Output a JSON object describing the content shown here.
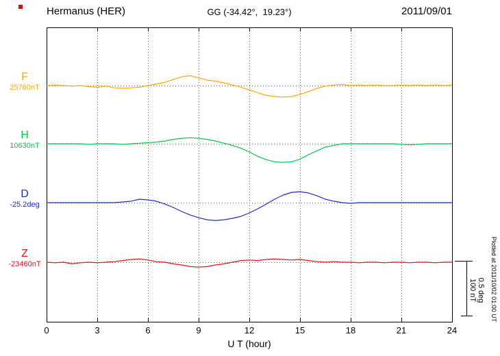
{
  "header": {
    "station": "Hermanus (HER)",
    "coordinates": "GG (-34.42°,  19.23°)",
    "date": "2011/09/01"
  },
  "x_axis": {
    "label": "U T (hour)",
    "tick_labels": [
      "0",
      "3",
      "6",
      "9",
      "12",
      "15",
      "18",
      "21",
      "24"
    ]
  },
  "scale_bar": {
    "nt": "100 nT",
    "deg": "0.5 deg"
  },
  "footer_note": "Plotted at 2011/10/02 01:00 UT",
  "chart_data": {
    "type": "line",
    "title": "Hermanus (HER) magnetogram 2011/09/01",
    "xlabel": "U T (hour)",
    "x_range_hours": [
      0,
      24
    ],
    "x_ticks": [
      0,
      3,
      6,
      9,
      12,
      15,
      18,
      21,
      24
    ],
    "sample_step_hours": 0.5,
    "grid": "dotted vertical at 3h intervals, dotted horizontal at each trace baseline",
    "scale": {
      "per_division_nT": 100,
      "per_division_deg": 0.5
    },
    "series": [
      {
        "name": "F",
        "baseline_label": "25760nT",
        "baseline_value": 25760,
        "unit": "nT",
        "color": "#FFA500",
        "delta": [
          0,
          1,
          0,
          -1,
          0,
          -2,
          -3,
          -1,
          -4,
          -5,
          -4,
          -3,
          0,
          3,
          6,
          11,
          16,
          18,
          14,
          10,
          8,
          5,
          1,
          -3,
          -8,
          -13,
          -18,
          -20,
          -21,
          -20,
          -16,
          -11,
          -5,
          -1,
          1,
          2,
          0,
          1,
          0,
          1,
          0,
          0,
          1,
          0,
          1,
          0,
          1,
          0,
          1
        ]
      },
      {
        "name": "H",
        "baseline_label": "10630nT",
        "baseline_value": 10630,
        "unit": "nT",
        "color": "#00C840",
        "delta": [
          0,
          0,
          0,
          0,
          0,
          -1,
          0,
          0,
          0,
          -1,
          0,
          1,
          2,
          3,
          5,
          8,
          10,
          11,
          10,
          8,
          5,
          1,
          -3,
          -8,
          -15,
          -23,
          -29,
          -33,
          -34,
          -33,
          -28,
          -20,
          -13,
          -6,
          -3,
          0,
          0,
          0,
          0,
          0,
          0,
          0,
          -1,
          -2,
          -1,
          0,
          0,
          0,
          0
        ]
      },
      {
        "name": "D",
        "baseline_label": "-25.2deg",
        "baseline_value": -25.2,
        "unit": "deg",
        "color": "#2228C8",
        "delta": [
          0,
          0,
          0,
          0,
          0,
          0,
          0,
          0,
          0,
          0.006,
          0.013,
          0.031,
          0.025,
          0.013,
          -0.013,
          -0.044,
          -0.081,
          -0.113,
          -0.138,
          -0.156,
          -0.163,
          -0.156,
          -0.144,
          -0.125,
          -0.094,
          -0.056,
          -0.013,
          0.031,
          0.069,
          0.094,
          0.1,
          0.088,
          0.063,
          0.031,
          0.013,
          0,
          -0.006,
          0,
          0,
          0,
          0,
          0,
          0,
          0,
          0,
          0,
          0,
          0,
          0
        ]
      },
      {
        "name": "Z",
        "baseline_label": "-23460nT",
        "baseline_value": -23460,
        "unit": "nT",
        "color": "#E01010",
        "delta": [
          0,
          -1,
          0,
          -3,
          -1,
          0,
          -1,
          0,
          1,
          3,
          5,
          6,
          4,
          1,
          0,
          -3,
          -5,
          -8,
          -9,
          -8,
          -5,
          -3,
          0,
          3,
          4,
          3,
          5,
          6,
          5,
          4,
          5,
          3,
          1,
          0,
          1,
          0,
          0,
          -1,
          0,
          0,
          -1,
          0,
          0,
          -1,
          0,
          0,
          -1,
          0,
          0
        ]
      }
    ]
  }
}
